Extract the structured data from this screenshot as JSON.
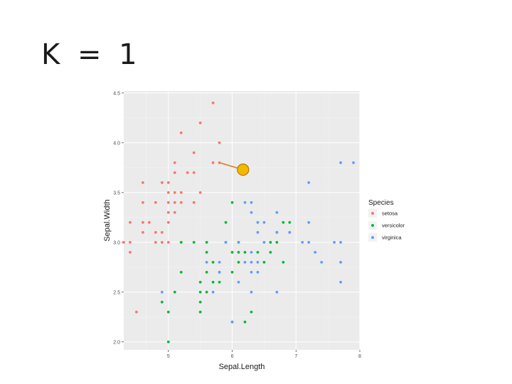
{
  "slide": {
    "title": "K = 1"
  },
  "colors": {
    "panel": "#ebebeb",
    "grid_major": "#ffffff",
    "grid_minor": "#f3f3f3",
    "setosa": "#f8766d",
    "versicolor": "#00ba38",
    "virginica": "#619cff",
    "query_fill": "#f5b800",
    "query_stroke": "#b07a00",
    "connector": "#e08a35"
  },
  "chart_data": {
    "type": "scatter",
    "xlabel": "Sepal.Length",
    "ylabel": "Sepal.Width",
    "xlim": [
      4.3,
      8.0
    ],
    "ylim": [
      1.92,
      4.52
    ],
    "xticks": [
      5,
      6,
      7,
      8
    ],
    "xtick_labels": [
      "5",
      "6",
      "7",
      "8"
    ],
    "yticks": [
      2.0,
      2.5,
      3.0,
      3.5,
      4.0,
      4.5
    ],
    "ytick_labels": [
      "2.0",
      "2.5",
      "3.0",
      "3.5",
      "4.0",
      "4.5"
    ],
    "grid": true,
    "legend": {
      "title": "Species",
      "placement": "right"
    },
    "series": [
      {
        "name": "setosa",
        "color": "#f8766d",
        "points": [
          [
            5.7,
            4.4
          ],
          [
            5.5,
            4.2
          ],
          [
            5.2,
            4.1
          ],
          [
            5.8,
            4.0
          ],
          [
            5.4,
            3.9
          ],
          [
            5.7,
            3.8
          ],
          [
            5.1,
            3.8
          ],
          [
            5.1,
            3.7
          ],
          [
            5.3,
            3.7
          ],
          [
            5.4,
            3.7
          ],
          [
            4.6,
            3.6
          ],
          [
            4.9,
            3.6
          ],
          [
            5.0,
            3.6
          ],
          [
            5.0,
            3.5
          ],
          [
            5.1,
            3.5
          ],
          [
            5.2,
            3.5
          ],
          [
            5.5,
            3.5
          ],
          [
            4.6,
            3.4
          ],
          [
            4.8,
            3.4
          ],
          [
            5.0,
            3.4
          ],
          [
            5.1,
            3.4
          ],
          [
            5.2,
            3.4
          ],
          [
            5.4,
            3.4
          ],
          [
            5.0,
            3.3
          ],
          [
            5.1,
            3.3
          ],
          [
            4.4,
            3.2
          ],
          [
            4.6,
            3.2
          ],
          [
            4.7,
            3.2
          ],
          [
            5.0,
            3.2
          ],
          [
            4.6,
            3.1
          ],
          [
            4.8,
            3.1
          ],
          [
            4.9,
            3.1
          ],
          [
            4.3,
            3.0
          ],
          [
            4.4,
            3.0
          ],
          [
            4.8,
            3.0
          ],
          [
            4.9,
            3.0
          ],
          [
            5.0,
            3.0
          ],
          [
            4.4,
            2.9
          ],
          [
            4.5,
            2.3
          ],
          [
            5.8,
            3.8
          ]
        ]
      },
      {
        "name": "versicolor",
        "color": "#00ba38",
        "points": [
          [
            6.0,
            3.4
          ],
          [
            5.9,
            3.2
          ],
          [
            6.8,
            3.2
          ],
          [
            6.9,
            3.2
          ],
          [
            6.7,
            3.1
          ],
          [
            5.2,
            3.0
          ],
          [
            5.6,
            3.0
          ],
          [
            5.9,
            3.0
          ],
          [
            6.6,
            3.0
          ],
          [
            6.1,
            3.0
          ],
          [
            6.7,
            3.0
          ],
          [
            5.6,
            2.9
          ],
          [
            6.0,
            2.9
          ],
          [
            6.1,
            2.9
          ],
          [
            6.2,
            2.9
          ],
          [
            6.4,
            2.9
          ],
          [
            6.6,
            2.9
          ],
          [
            5.7,
            2.8
          ],
          [
            6.1,
            2.8
          ],
          [
            6.5,
            2.8
          ],
          [
            6.8,
            2.8
          ],
          [
            5.8,
            2.7
          ],
          [
            5.2,
            2.7
          ],
          [
            5.6,
            2.7
          ],
          [
            6.0,
            2.7
          ],
          [
            5.5,
            2.6
          ],
          [
            5.8,
            2.6
          ],
          [
            5.5,
            2.5
          ],
          [
            5.6,
            2.5
          ],
          [
            5.1,
            2.5
          ],
          [
            5.7,
            2.6
          ],
          [
            5.5,
            2.4
          ],
          [
            4.9,
            2.4
          ],
          [
            5.0,
            2.3
          ],
          [
            5.5,
            2.3
          ],
          [
            6.3,
            2.3
          ],
          [
            6.2,
            2.2
          ],
          [
            6.0,
            2.2
          ],
          [
            5.0,
            2.0
          ],
          [
            5.4,
            3.0
          ]
        ]
      },
      {
        "name": "virginica",
        "color": "#619cff",
        "points": [
          [
            7.7,
            3.8
          ],
          [
            7.9,
            3.8
          ],
          [
            7.2,
            3.6
          ],
          [
            6.2,
            3.4
          ],
          [
            6.3,
            3.4
          ],
          [
            6.7,
            3.3
          ],
          [
            6.3,
            3.3
          ],
          [
            6.4,
            3.2
          ],
          [
            6.5,
            3.2
          ],
          [
            7.2,
            3.2
          ],
          [
            6.9,
            3.1
          ],
          [
            6.7,
            3.1
          ],
          [
            6.4,
            3.1
          ],
          [
            7.2,
            3.0
          ],
          [
            7.7,
            3.0
          ],
          [
            7.6,
            3.0
          ],
          [
            6.1,
            3.0
          ],
          [
            6.5,
            3.0
          ],
          [
            5.9,
            3.0
          ],
          [
            7.1,
            3.0
          ],
          [
            6.3,
            2.9
          ],
          [
            7.3,
            2.9
          ],
          [
            6.3,
            2.8
          ],
          [
            6.4,
            2.8
          ],
          [
            7.4,
            2.8
          ],
          [
            7.7,
            2.8
          ],
          [
            6.2,
            2.8
          ],
          [
            5.8,
            2.7
          ],
          [
            6.3,
            2.7
          ],
          [
            6.4,
            2.7
          ],
          [
            7.7,
            2.6
          ],
          [
            6.1,
            2.6
          ],
          [
            4.9,
            2.5
          ],
          [
            5.7,
            2.5
          ],
          [
            6.7,
            2.5
          ],
          [
            6.3,
            2.5
          ],
          [
            6.0,
            2.2
          ],
          [
            5.6,
            2.8
          ],
          [
            5.8,
            2.8
          ],
          [
            6.9,
            3.1
          ]
        ]
      }
    ],
    "query_point": {
      "x": 6.17,
      "y": 3.73,
      "nearest": [
        5.8,
        3.8
      ]
    }
  }
}
